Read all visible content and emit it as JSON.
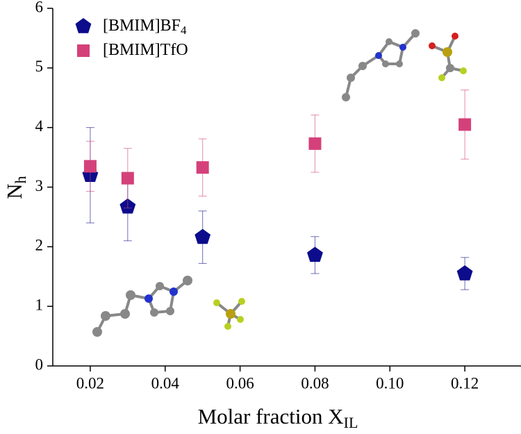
{
  "chart_data": {
    "type": "scatter",
    "xlabel": {
      "text": "Molar fraction X",
      "sub": "IL"
    },
    "ylabel": {
      "text": "N",
      "sub": "h"
    },
    "xlim": [
      0.01,
      0.135
    ],
    "ylim": [
      0,
      6
    ],
    "xticks": [
      0.02,
      0.04,
      0.06,
      0.08,
      {
        "value": 0.1,
        "label": "0.10"
      },
      0.12
    ],
    "yticks": [
      0,
      1,
      2,
      3,
      4,
      5,
      6
    ],
    "series": [
      {
        "name": "[BMIM]BF",
        "name_sub": "4",
        "color": "#0c0c8c",
        "marker": "pentagon",
        "x": [
          0.02,
          0.03,
          0.05,
          0.08,
          0.12
        ],
        "values": [
          3.2,
          2.67,
          2.16,
          1.86,
          1.55
        ],
        "errors": [
          0.8,
          0.57,
          0.44,
          0.31,
          0.27
        ]
      },
      {
        "name": "[BMIM]TfO",
        "color": "#d4407a",
        "marker": "square",
        "x": [
          0.02,
          0.03,
          0.05,
          0.08,
          0.12
        ],
        "values": [
          3.35,
          3.15,
          3.33,
          3.73,
          4.05
        ],
        "errors": [
          0.42,
          0.5,
          0.48,
          0.48,
          0.58
        ]
      }
    ]
  }
}
